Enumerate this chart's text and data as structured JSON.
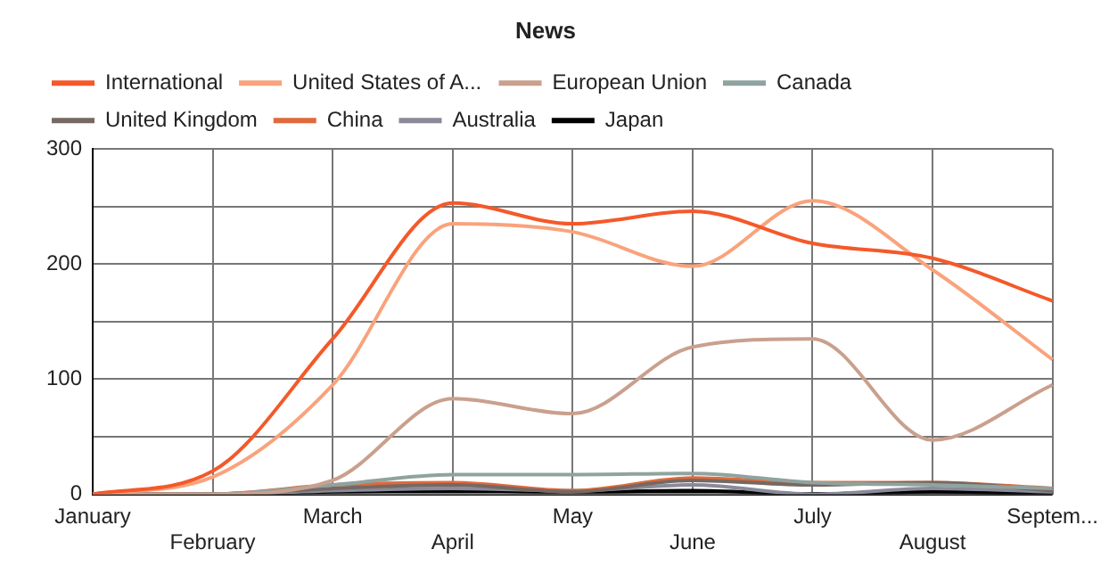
{
  "chart_data": {
    "type": "line",
    "title": "News",
    "categories": [
      "January",
      "February",
      "March",
      "April",
      "May",
      "June",
      "July",
      "August",
      "Septem..."
    ],
    "series": [
      {
        "name": "International",
        "color": "#f4592a",
        "values": [
          0,
          20,
          135,
          253,
          235,
          246,
          218,
          205,
          168
        ]
      },
      {
        "name": "United States of A...",
        "color": "#f9a37c",
        "values": [
          0,
          15,
          95,
          235,
          228,
          198,
          255,
          195,
          117
        ]
      },
      {
        "name": "European Union",
        "color": "#c9a08e",
        "values": [
          0,
          0,
          12,
          83,
          70,
          128,
          135,
          47,
          95
        ]
      },
      {
        "name": "Canada",
        "color": "#8fa39f",
        "values": [
          0,
          0,
          8,
          17,
          17,
          18,
          10,
          8,
          5
        ]
      },
      {
        "name": "United Kingdom",
        "color": "#766862",
        "values": [
          0,
          0,
          5,
          8,
          2,
          12,
          8,
          10,
          3
        ]
      },
      {
        "name": "China",
        "color": "#e06a3c",
        "values": [
          0,
          0,
          8,
          10,
          3,
          14,
          10,
          10,
          5
        ]
      },
      {
        "name": "Australia",
        "color": "#8a8a9a",
        "values": [
          0,
          0,
          3,
          5,
          3,
          8,
          0,
          5,
          2
        ]
      },
      {
        "name": "Japan",
        "color": "#000000",
        "values": [
          0,
          0,
          2,
          3,
          2,
          3,
          0,
          2,
          0
        ]
      }
    ],
    "ylim": [
      0,
      300
    ],
    "yticks": [
      0,
      {
        "value": 50,
        "label": null
      },
      100,
      {
        "value": 150,
        "label": null
      },
      200,
      {
        "value": 250,
        "label": null
      },
      300
    ],
    "grid": true,
    "legend": "top",
    "marker": "none",
    "line_style": "solid"
  }
}
